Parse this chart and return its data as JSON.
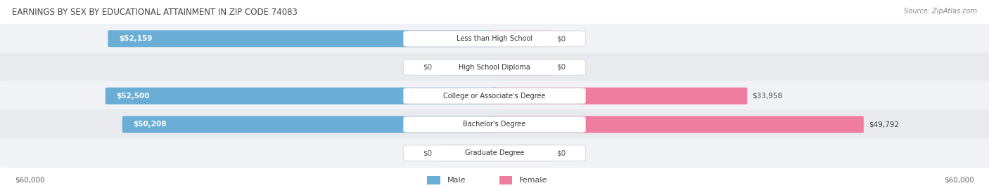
{
  "title": "EARNINGS BY SEX BY EDUCATIONAL ATTAINMENT IN ZIP CODE 74083",
  "source": "Source: ZipAtlas.com",
  "categories": [
    "Less than High School",
    "High School Diploma",
    "College or Associate's Degree",
    "Bachelor's Degree",
    "Graduate Degree"
  ],
  "male_values": [
    52159,
    0,
    52500,
    50208,
    0
  ],
  "female_values": [
    0,
    0,
    33958,
    49792,
    0
  ],
  "male_color": "#6aaed6",
  "female_color": "#f07ca0",
  "male_light": "#b8d4ea",
  "female_light": "#f5b8cc",
  "max_value": 60000,
  "xlabel_left": "$60,000",
  "xlabel_right": "$60,000",
  "figsize": [
    14.06,
    2.68
  ],
  "dpi": 100,
  "bg_even": "#f0f2f5",
  "bg_odd": "#e8eaee"
}
